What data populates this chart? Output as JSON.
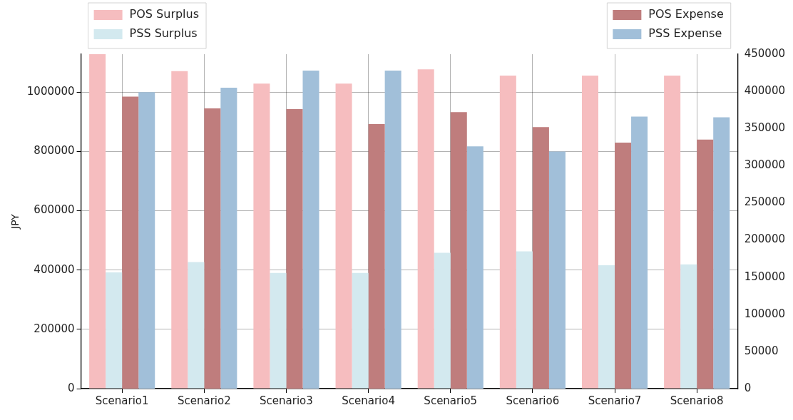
{
  "chart_data": {
    "type": "bar",
    "ylabel": "JPY",
    "categories": [
      "Scenario1",
      "Scenario2",
      "Scenario3",
      "Scenario4",
      "Scenario5",
      "Scenario6",
      "Scenario7",
      "Scenario8"
    ],
    "series": [
      {
        "name": "POS Surplus",
        "color": "#f6bdbf",
        "values": [
          1128000,
          1071000,
          1029000,
          1029000,
          1077000,
          1056000,
          1056000,
          1056000
        ]
      },
      {
        "name": "PSS Surplus",
        "color": "#d3e9ef",
        "values": [
          392000,
          427000,
          390000,
          390000,
          458000,
          463000,
          416000,
          419000
        ]
      },
      {
        "name": "POS Expense",
        "color": "#bf7d7d",
        "axis": "y2",
        "values": [
          393000,
          377000,
          376000,
          356000,
          372000,
          352000,
          331000,
          335000
        ]
      },
      {
        "name": "PSS Expense",
        "color": "#a1bfd9",
        "axis": "y2",
        "values": [
          399000,
          405000,
          428000,
          428000,
          326000,
          319000,
          366000,
          365000
        ]
      }
    ],
    "ylim": [
      0,
      1128000
    ],
    "yticks": [
      0,
      200000,
      400000,
      600000,
      800000,
      1000000
    ],
    "y2lim": [
      0,
      450000
    ],
    "y2ticks": [
      0,
      50000,
      100000,
      150000,
      200000,
      250000,
      300000,
      350000,
      400000,
      450000
    ],
    "grid": true,
    "legend": "top"
  }
}
